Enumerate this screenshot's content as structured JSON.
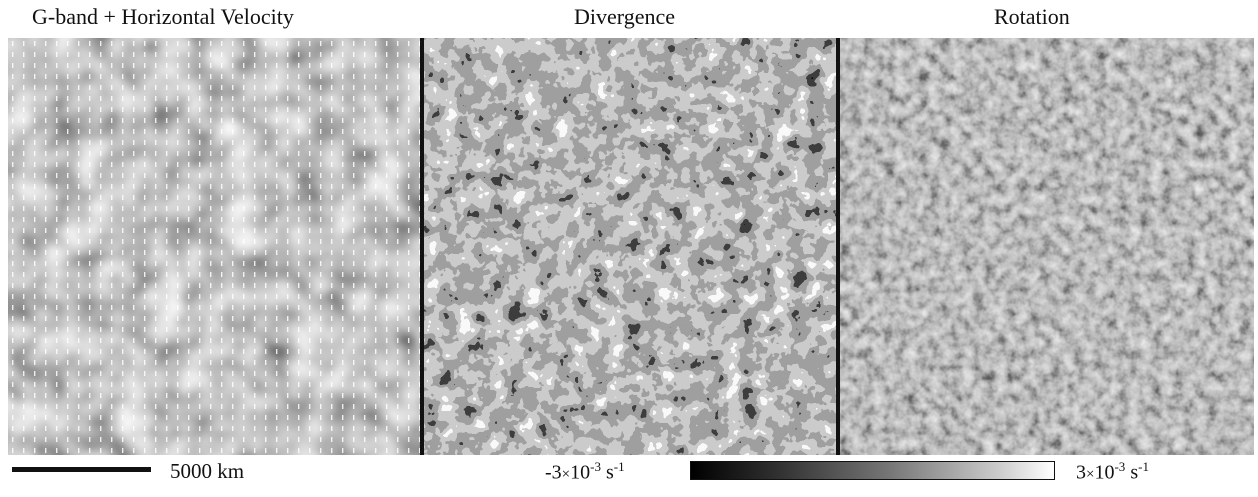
{
  "titles": {
    "left": "G-band + Horizontal Velocity",
    "middle": "Divergence",
    "right": "Rotation"
  },
  "scale_bar": {
    "label": "5000 km"
  },
  "colorbar": {
    "min": {
      "coef": "-3",
      "times": "×",
      "base": "10",
      "exp": "-3",
      "unit": "s",
      "unit_exp": "-1"
    },
    "max": {
      "coef": "3",
      "times": "×",
      "base": "10",
      "exp": "-3",
      "unit": "s",
      "unit_exp": "-1"
    }
  }
}
